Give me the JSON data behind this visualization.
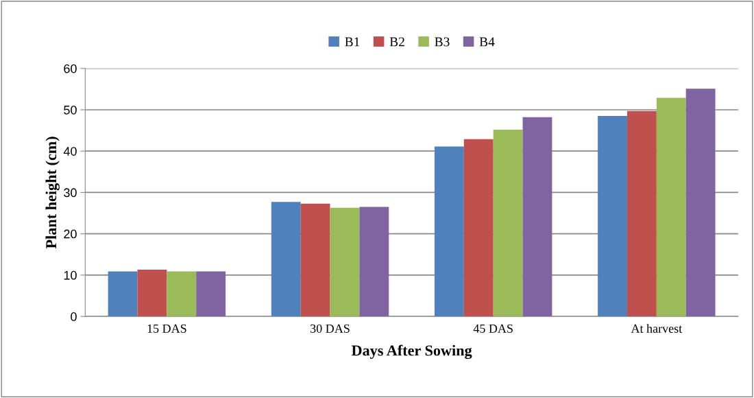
{
  "chart_data": {
    "type": "bar",
    "xlabel": "Days After Sowing",
    "ylabel": "Plant height (cm)",
    "categories": [
      "15 DAS",
      "30 DAS",
      "45 DAS",
      "At harvest"
    ],
    "series": [
      {
        "name": "B1",
        "color": "#4f81bd",
        "values": [
          10.9,
          27.7,
          41.1,
          48.5
        ]
      },
      {
        "name": "B2",
        "color": "#c0504d",
        "values": [
          11.3,
          27.3,
          42.9,
          49.7
        ]
      },
      {
        "name": "B3",
        "color": "#9bbb59",
        "values": [
          10.9,
          26.3,
          45.2,
          52.9
        ]
      },
      {
        "name": "B4",
        "color": "#8064a2",
        "values": [
          10.9,
          26.5,
          48.2,
          55.1
        ]
      }
    ],
    "ylim": [
      0,
      60
    ],
    "yticks": [
      0,
      10,
      20,
      30,
      40,
      50,
      60
    ],
    "grid": "y",
    "legend": "top"
  }
}
